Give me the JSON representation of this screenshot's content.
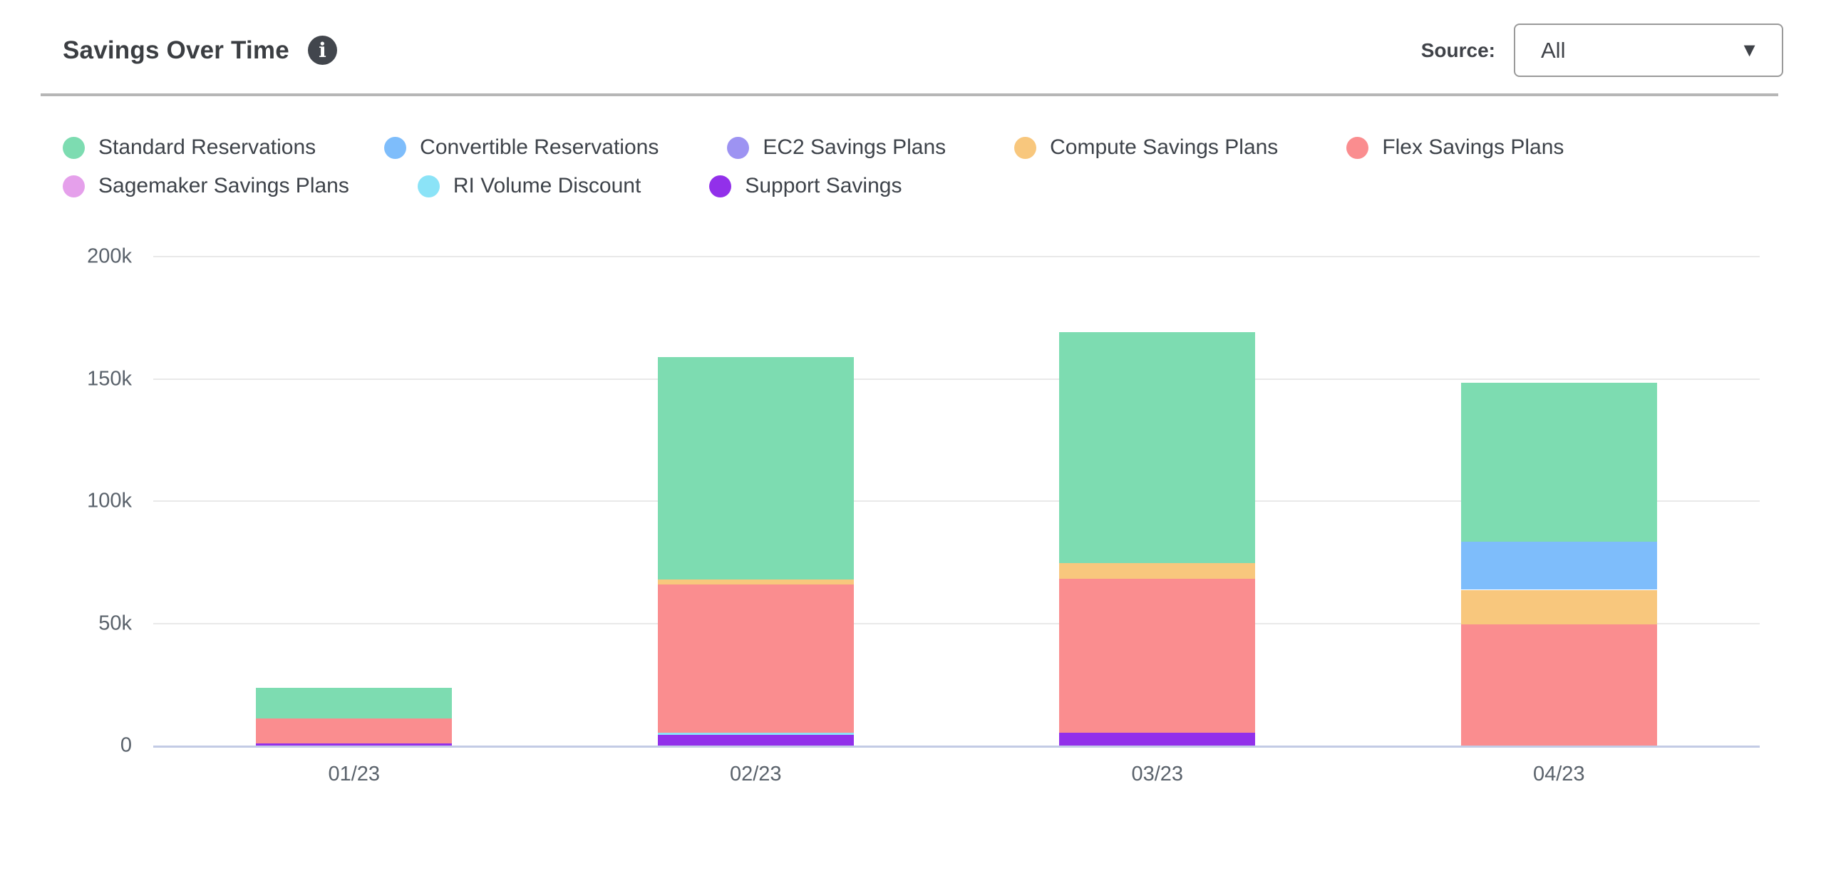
{
  "header": {
    "title": "Savings Over Time",
    "source_label": "Source:",
    "source_value": "All"
  },
  "icons": {
    "info_icon": "i",
    "caret_icon": "▼"
  },
  "chart_data": {
    "type": "bar",
    "stacked": true,
    "stack_order": "bottom-to-top is reverse of legend order",
    "title": "Savings Over Time",
    "xlabel": "",
    "ylabel": "",
    "grid": true,
    "legend_position": "top",
    "categories": [
      "01/23",
      "02/23",
      "03/23",
      "04/23"
    ],
    "series": [
      {
        "name": "Standard Reservations",
        "color": "#7DDCB1",
        "values": [
          12300,
          91000,
          94500,
          65000
        ]
      },
      {
        "name": "Convertible Reservations",
        "color": "#7EBDFB",
        "values": [
          0,
          0,
          0,
          19600
        ]
      },
      {
        "name": "EC2 Savings Plans",
        "color": "#9D93F2",
        "values": [
          0,
          0,
          0,
          0
        ]
      },
      {
        "name": "Compute Savings Plans",
        "color": "#F8C77D",
        "values": [
          0,
          2000,
          6400,
          14000
        ]
      },
      {
        "name": "Flex Savings Plans",
        "color": "#FA8D8F",
        "values": [
          10200,
          60600,
          62900,
          49700
        ]
      },
      {
        "name": "Sagemaker Savings Plans",
        "color": "#E5A0EB",
        "values": [
          0,
          0,
          0,
          0
        ]
      },
      {
        "name": "RI Volume Discount",
        "color": "#8BE3F7",
        "values": [
          0,
          900,
          0,
          0
        ]
      },
      {
        "name": "Support Savings",
        "color": "#9230EA",
        "values": [
          1000,
          4400,
          5300,
          0
        ]
      }
    ],
    "ylim": [
      0,
      200000
    ],
    "yticks": [
      {
        "v": 0,
        "label": "0"
      },
      {
        "v": 50000,
        "label": "50k"
      },
      {
        "v": 100000,
        "label": "100k"
      },
      {
        "v": 150000,
        "label": "150k"
      },
      {
        "v": 200000,
        "label": "200k"
      }
    ]
  }
}
